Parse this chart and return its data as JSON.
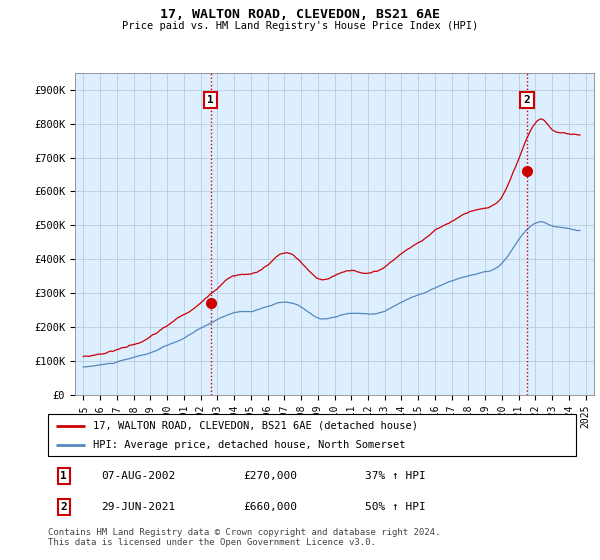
{
  "title": "17, WALTON ROAD, CLEVEDON, BS21 6AE",
  "subtitle": "Price paid vs. HM Land Registry's House Price Index (HPI)",
  "legend_line1": "17, WALTON ROAD, CLEVEDON, BS21 6AE (detached house)",
  "legend_line2": "HPI: Average price, detached house, North Somerset",
  "transaction1_label": "1",
  "transaction1_date": "07-AUG-2002",
  "transaction1_price": "£270,000",
  "transaction1_hpi": "37% ↑ HPI",
  "transaction2_label": "2",
  "transaction2_date": "29-JUN-2021",
  "transaction2_price": "£660,000",
  "transaction2_hpi": "50% ↑ HPI",
  "footnote": "Contains HM Land Registry data © Crown copyright and database right 2024.\nThis data is licensed under the Open Government Licence v3.0.",
  "red_color": "#cc0000",
  "blue_color": "#5588bb",
  "chart_bg": "#ddeeff",
  "marker1_x": 2002.6,
  "marker1_y": 270000,
  "marker2_x": 2021.5,
  "marker2_y": 660000,
  "vline1_x": 2002.6,
  "vline2_x": 2021.5,
  "ylim_min": 0,
  "ylim_max": 950000,
  "xlim_min": 1994.5,
  "xlim_max": 2025.5,
  "yticks": [
    0,
    100000,
    200000,
    300000,
    400000,
    500000,
    600000,
    700000,
    800000,
    900000
  ],
  "ytick_labels": [
    "£0",
    "£100K",
    "£200K",
    "£300K",
    "£400K",
    "£500K",
    "£600K",
    "£700K",
    "£800K",
    "£900K"
  ],
  "xticks": [
    1995,
    1996,
    1997,
    1998,
    1999,
    2000,
    2001,
    2002,
    2003,
    2004,
    2005,
    2006,
    2007,
    2008,
    2009,
    2010,
    2011,
    2012,
    2013,
    2014,
    2015,
    2016,
    2017,
    2018,
    2019,
    2020,
    2021,
    2022,
    2023,
    2024,
    2025
  ]
}
